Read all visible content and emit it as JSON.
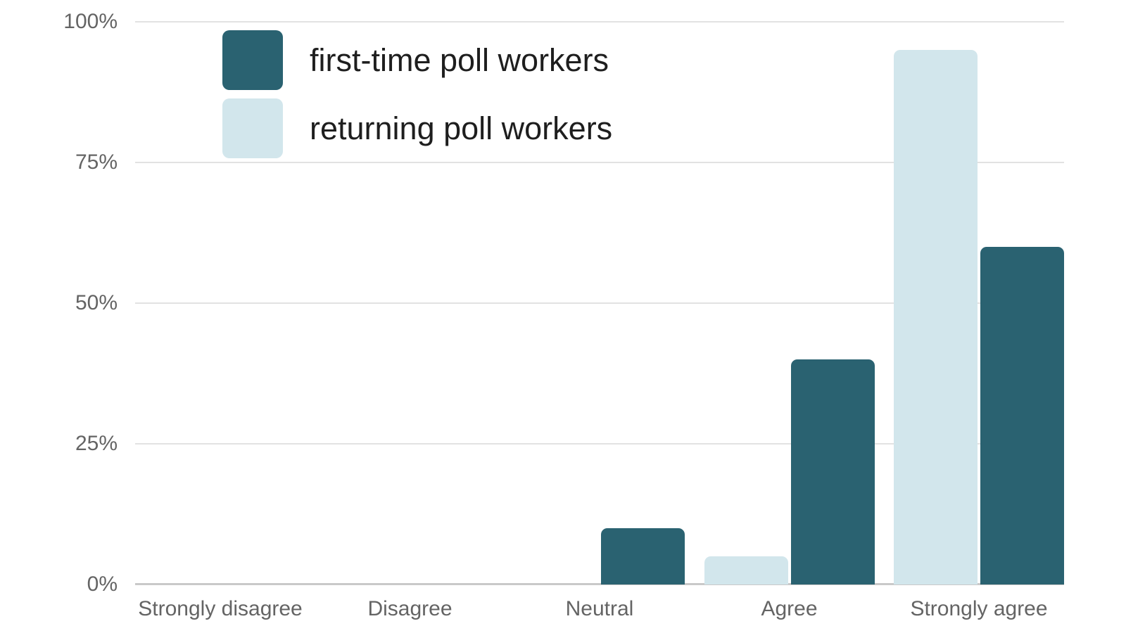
{
  "chart_data": {
    "type": "bar",
    "title": "",
    "xlabel": "",
    "ylabel": "",
    "categories": [
      "Strongly disagree",
      "Disagree",
      "Neutral",
      "Agree",
      "Strongly agree"
    ],
    "series": [
      {
        "name": "first-time poll workers",
        "color": "#2a6271",
        "values": [
          0,
          0,
          10,
          40,
          60
        ]
      },
      {
        "name": "returning poll workers",
        "color": "#d2e6ec",
        "values": [
          0,
          0,
          0,
          5,
          95
        ]
      }
    ],
    "group_bar_order": [
      1,
      0
    ],
    "ylim": [
      0,
      100
    ],
    "yticks": [
      0,
      25,
      50,
      75,
      100
    ],
    "ytick_labels": [
      "0%",
      "25%",
      "50%",
      "75%",
      "100%"
    ],
    "grid": true,
    "legend_position": "top-left",
    "colors": {
      "background": "#ffffff",
      "gridline": "#e2e2e2",
      "baseline": "#c9c9c9",
      "axis_text": "#646464",
      "legend_text": "#1e1e1e"
    }
  }
}
